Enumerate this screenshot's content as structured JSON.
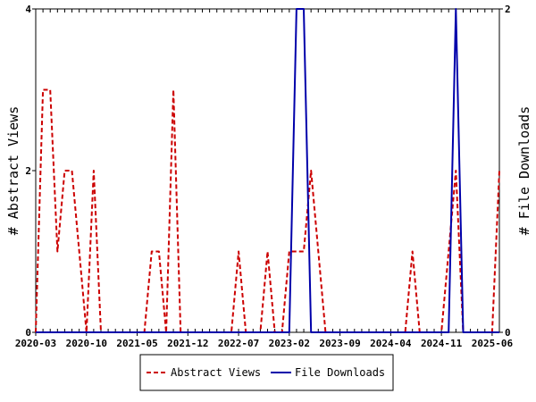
{
  "chart_data": {
    "type": "line",
    "x_unit": "month",
    "left_axis": {
      "label": "# Abstract Views",
      "ylim": [
        0,
        4
      ],
      "ticks": [
        "0",
        "2",
        "4"
      ]
    },
    "right_axis": {
      "label": "# File Downloads",
      "ylim": [
        0,
        2
      ],
      "ticks": [
        "0",
        "2"
      ]
    },
    "xlim": [
      "2020-03",
      "2025-07"
    ],
    "x_tick_labels": [
      "2020-03",
      "2020-10",
      "2021-05",
      "2021-12",
      "2022-07",
      "2023-02",
      "2023-09",
      "2024-04",
      "2024-11",
      "2025-06"
    ],
    "legend": {
      "placement": "bottom-center"
    },
    "series": [
      {
        "name": "Abstract Views",
        "axis": "left",
        "color": "#cc0000",
        "dash": "dashed",
        "x": [
          "2020-03",
          "2020-04",
          "2020-05",
          "2020-06",
          "2020-07",
          "2020-08",
          "2020-09",
          "2020-10",
          "2020-11",
          "2020-12",
          "2021-01",
          "2021-02",
          "2021-03",
          "2021-04",
          "2021-05",
          "2021-06",
          "2021-07",
          "2021-08",
          "2021-09",
          "2021-10",
          "2021-11",
          "2021-12",
          "2022-01",
          "2022-02",
          "2022-03",
          "2022-04",
          "2022-05",
          "2022-06",
          "2022-07",
          "2022-08",
          "2022-09",
          "2022-10",
          "2022-11",
          "2022-12",
          "2023-01",
          "2023-02",
          "2023-03",
          "2023-04",
          "2023-05",
          "2023-06",
          "2023-07",
          "2023-08",
          "2023-09",
          "2023-10",
          "2023-11",
          "2023-12",
          "2024-01",
          "2024-02",
          "2024-03",
          "2024-04",
          "2024-05",
          "2024-06",
          "2024-07",
          "2024-08",
          "2024-09",
          "2024-10",
          "2024-11",
          "2024-12",
          "2025-01",
          "2025-02",
          "2025-03",
          "2025-04",
          "2025-05",
          "2025-06",
          "2025-07"
        ],
        "values": [
          0,
          3,
          3,
          1,
          2,
          2,
          1,
          0,
          2,
          0,
          0,
          0,
          0,
          0,
          0,
          0,
          1,
          1,
          0,
          3,
          0,
          0,
          0,
          0,
          0,
          0,
          0,
          0,
          1,
          0,
          0,
          0,
          1,
          0,
          0,
          1,
          1,
          1,
          2,
          1,
          0,
          0,
          0,
          0,
          0,
          0,
          0,
          0,
          0,
          0,
          0,
          0,
          1,
          0,
          0,
          0,
          0,
          1,
          2,
          0,
          0,
          0,
          0,
          0,
          2
        ]
      },
      {
        "name": "File Downloads",
        "axis": "right",
        "color": "#0000aa",
        "dash": "solid",
        "x": [
          "2020-03",
          "2020-04",
          "2020-05",
          "2020-06",
          "2020-07",
          "2020-08",
          "2020-09",
          "2020-10",
          "2020-11",
          "2020-12",
          "2021-01",
          "2021-02",
          "2021-03",
          "2021-04",
          "2021-05",
          "2021-06",
          "2021-07",
          "2021-08",
          "2021-09",
          "2021-10",
          "2021-11",
          "2021-12",
          "2022-01",
          "2022-02",
          "2022-03",
          "2022-04",
          "2022-05",
          "2022-06",
          "2022-07",
          "2022-08",
          "2022-09",
          "2022-10",
          "2022-11",
          "2022-12",
          "2023-01",
          "2023-02",
          "2023-03",
          "2023-04",
          "2023-05",
          "2023-06",
          "2023-07",
          "2023-08",
          "2023-09",
          "2023-10",
          "2023-11",
          "2023-12",
          "2024-01",
          "2024-02",
          "2024-03",
          "2024-04",
          "2024-05",
          "2024-06",
          "2024-07",
          "2024-08",
          "2024-09",
          "2024-10",
          "2024-11",
          "2024-12",
          "2025-01",
          "2025-02",
          "2025-03",
          "2025-04",
          "2025-05",
          "2025-06",
          "2025-07"
        ],
        "values": [
          0,
          0,
          0,
          0,
          0,
          0,
          0,
          0,
          0,
          0,
          0,
          0,
          0,
          0,
          0,
          0,
          0,
          0,
          0,
          0,
          0,
          0,
          0,
          0,
          0,
          0,
          0,
          0,
          0,
          0,
          0,
          0,
          0,
          0,
          0,
          0,
          2,
          2,
          0,
          0,
          0,
          0,
          0,
          0,
          0,
          0,
          0,
          0,
          0,
          0,
          0,
          0,
          0,
          0,
          0,
          0,
          0,
          0,
          2,
          0,
          0,
          0,
          0,
          0,
          0
        ]
      }
    ]
  }
}
